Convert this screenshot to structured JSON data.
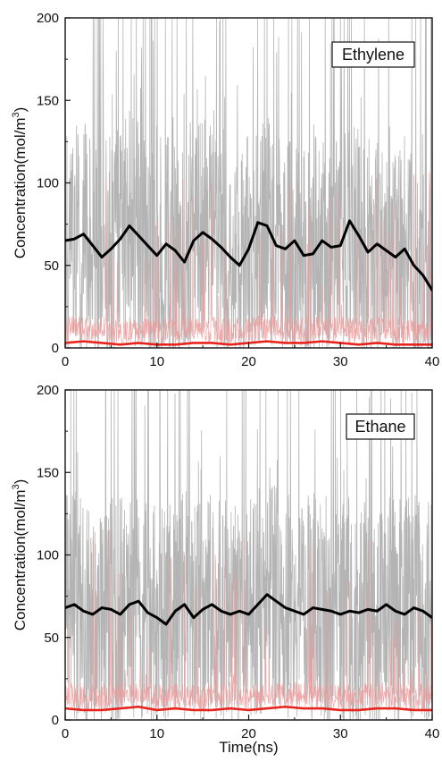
{
  "chart_data": [
    {
      "type": "line",
      "legend_label": "Ethylene",
      "legend_position": "top-right",
      "ylabel": "Concentration(mol/m",
      "ylabel_sup": "3",
      "ylabel_close": ")",
      "xlabel": "",
      "xlim": [
        0,
        40
      ],
      "ylim": [
        0,
        200
      ],
      "x_ticks": [
        "0",
        "10",
        "20",
        "30",
        "40"
      ],
      "y_ticks": [
        "0",
        "50",
        "100",
        "150",
        "200"
      ],
      "colors": {
        "raw_black": "#b4b4b4",
        "raw_red": "#ef9a9a",
        "avg_black": "#000000",
        "avg_red": "#e8231b"
      },
      "series": [
        {
          "color": "#000000",
          "x": [
            0,
            1,
            2,
            3,
            4,
            5,
            6,
            7,
            8,
            9,
            10,
            11,
            12,
            13,
            14,
            15,
            16,
            17,
            18,
            19,
            20,
            21,
            22,
            23,
            24,
            25,
            26,
            27,
            28,
            29,
            30,
            31,
            32,
            33,
            34,
            35,
            36,
            37,
            38,
            39,
            40
          ],
          "values": [
            65,
            66,
            69,
            62,
            55,
            60,
            66,
            74,
            68,
            62,
            56,
            63,
            59,
            52,
            65,
            70,
            66,
            61,
            55,
            50,
            60,
            76,
            74,
            62,
            60,
            65,
            56,
            57,
            65,
            61,
            62,
            77,
            68,
            58,
            63,
            59,
            55,
            60,
            50,
            44,
            35
          ]
        },
        {
          "color": "#e8231b",
          "x": [
            0,
            2,
            4,
            6,
            8,
            10,
            12,
            14,
            16,
            18,
            20,
            22,
            24,
            26,
            28,
            30,
            32,
            34,
            36,
            38,
            40
          ],
          "values": [
            3,
            4,
            3,
            2,
            3,
            2,
            2,
            3,
            3,
            2,
            3,
            4,
            3,
            3,
            4,
            3,
            2,
            3,
            2,
            2,
            2
          ]
        }
      ]
    },
    {
      "type": "line",
      "legend_label": "Ethane",
      "legend_position": "top-right",
      "ylabel": "Concentration(mol/m",
      "ylabel_sup": "3",
      "ylabel_close": ")",
      "xlabel": "Time(ns)",
      "xlim": [
        0,
        40
      ],
      "ylim": [
        0,
        200
      ],
      "x_ticks": [
        "0",
        "10",
        "20",
        "30",
        "40"
      ],
      "y_ticks": [
        "0",
        "50",
        "100",
        "150",
        "200"
      ],
      "colors": {
        "raw_black": "#b4b4b4",
        "raw_red": "#ef9a9a",
        "avg_black": "#000000",
        "avg_red": "#e8231b"
      },
      "series": [
        {
          "color": "#000000",
          "x": [
            0,
            1,
            2,
            3,
            4,
            5,
            6,
            7,
            8,
            9,
            10,
            11,
            12,
            13,
            14,
            15,
            16,
            17,
            18,
            19,
            20,
            21,
            22,
            23,
            24,
            25,
            26,
            27,
            28,
            29,
            30,
            31,
            32,
            33,
            34,
            35,
            36,
            37,
            38,
            39,
            40
          ],
          "values": [
            68,
            70,
            66,
            64,
            68,
            67,
            64,
            70,
            72,
            65,
            62,
            58,
            66,
            70,
            62,
            67,
            70,
            66,
            64,
            66,
            64,
            70,
            76,
            72,
            68,
            66,
            64,
            68,
            67,
            66,
            64,
            66,
            65,
            67,
            66,
            70,
            66,
            64,
            68,
            66,
            62
          ]
        },
        {
          "color": "#e8231b",
          "x": [
            0,
            2,
            4,
            6,
            8,
            10,
            12,
            14,
            16,
            18,
            20,
            22,
            24,
            26,
            28,
            30,
            32,
            34,
            36,
            38,
            40
          ],
          "values": [
            7,
            6,
            6,
            7,
            8,
            6,
            7,
            6,
            6,
            7,
            6,
            7,
            8,
            7,
            7,
            6,
            6,
            7,
            7,
            6,
            6
          ]
        }
      ]
    }
  ]
}
